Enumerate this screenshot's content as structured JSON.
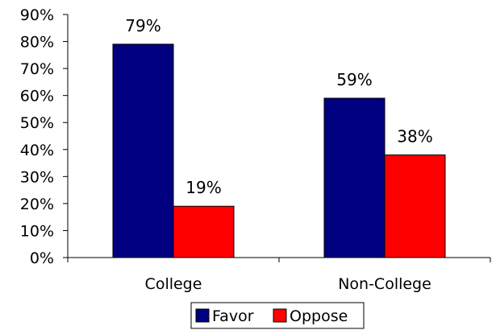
{
  "chart_data": {
    "type": "bar",
    "categories": [
      "College",
      "Non-College"
    ],
    "series": [
      {
        "name": "Favor",
        "values": [
          79,
          59
        ],
        "color": "#000080"
      },
      {
        "name": "Oppose",
        "values": [
          19,
          38
        ],
        "color": "#FF0000"
      }
    ],
    "value_labels": [
      [
        "79%",
        "59%"
      ],
      [
        "19%",
        "38%"
      ]
    ],
    "y_ticks": [
      "0%",
      "10%",
      "20%",
      "30%",
      "40%",
      "50%",
      "60%",
      "70%",
      "80%",
      "90%"
    ],
    "ylim": [
      0,
      90
    ],
    "title": "",
    "xlabel": "",
    "ylabel": "",
    "grid": false,
    "legend_position": "bottom"
  }
}
